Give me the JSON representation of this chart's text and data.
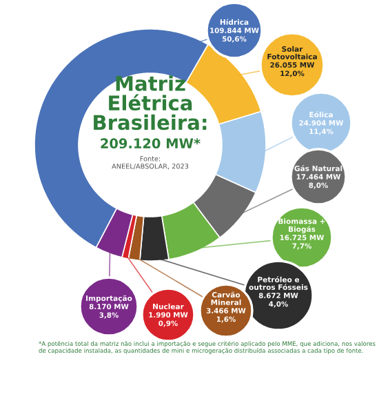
{
  "chart_data": {
    "type": "donut",
    "title": "Matriz Elétrica Brasileira:",
    "subtitle": "209.120 MW*",
    "categories": [
      "Hídrica",
      "Solar Fotovoltaica",
      "Eólica",
      "Gás Natural",
      "Biomassa + Biogás",
      "Petróleo e outros Fósseis",
      "Carvão Mineral",
      "Nuclear",
      "Importação"
    ],
    "values": [
      50.6,
      12.0,
      11.4,
      8.0,
      7.7,
      4.0,
      1.6,
      0.9,
      3.8
    ],
    "value_labels": [
      "109.844 MW\n50,6%",
      "26.055 MW\n12,0%",
      "24.904 MW\n11,4%",
      "17.464 MW\n8,0%",
      "16.725 MW\n7,7%",
      "8.672 MW\n4,0%",
      "3.466 MW\n1,6%",
      "1.990 MW\n0,9%",
      "8.170 MW\n3,8%"
    ],
    "colors": [
      "#4a72b8",
      "#f5b82e",
      "#a3c8ea",
      "#6b6b6b",
      "#6cb443",
      "#2e2e2e",
      "#a0561e",
      "#d9232a",
      "#7b2a8a"
    ],
    "annotations": [
      "Fonte:\nANEEL/ABSOLAR, 2023",
      "*A potência total da matriz não inclui a importação e segue critério aplicado pelo MME, que adiciona, nos valores de capacidade instalada, as quantidades de mini e microgeração distribuída associadas a cada tipo de fonte."
    ]
  }
}
